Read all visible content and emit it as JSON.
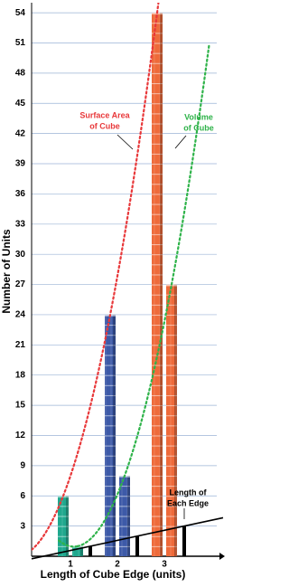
{
  "chart_data": {
    "type": "bar",
    "x_label": "Length of Cube Edge (units)",
    "y_label": "Number of Units",
    "categories": [
      "1",
      "2",
      "3"
    ],
    "category_colors": [
      "#1fa88e",
      "#3d5aa8",
      "#ee6a3a"
    ],
    "series": [
      {
        "name": [
          "Surface Area",
          "of Cube"
        ],
        "color": "#e8383a",
        "values": [
          6,
          24,
          54
        ],
        "trend": "dashed"
      },
      {
        "name": [
          "Volume",
          "of Cube"
        ],
        "color": "#2fb34a",
        "values": [
          1,
          8,
          27
        ],
        "trend": "dashed"
      },
      {
        "name": [
          "Length of",
          "Each Edge"
        ],
        "color": "#000000",
        "values": [
          1,
          2,
          3
        ],
        "trend": "line"
      }
    ],
    "ylim": [
      0,
      55
    ],
    "yticks": [
      3,
      6,
      9,
      12,
      15,
      18,
      21,
      24,
      27,
      30,
      33,
      36,
      39,
      42,
      45,
      48,
      51,
      54
    ],
    "grid": true
  }
}
